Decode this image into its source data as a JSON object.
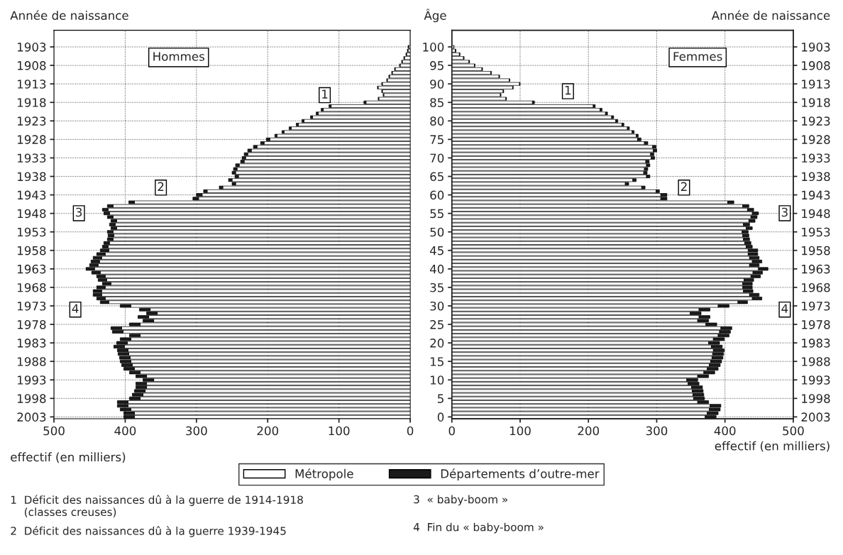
{
  "chart_data": [
    {
      "type": "bar",
      "orientation": "horizontal",
      "stacked": true,
      "title": "Hommes",
      "ylabel": "Année de naissance",
      "xlabel": "effectif (en milliers)",
      "categories": [
        "1903",
        null,
        null,
        null,
        null,
        "1908",
        null,
        null,
        null,
        null,
        "1913",
        null,
        null,
        null,
        null,
        "1918",
        null,
        null,
        null,
        null,
        "1923",
        null,
        null,
        null,
        null,
        "1928",
        null,
        null,
        null,
        null,
        "1933",
        null,
        null,
        null,
        null,
        "1938",
        null,
        null,
        null,
        null,
        "1943",
        null,
        null,
        null,
        null,
        "1948",
        null,
        null,
        null,
        null,
        "1953",
        null,
        null,
        null,
        null,
        "1958",
        null,
        null,
        null,
        null,
        "1963",
        null,
        null,
        null,
        null,
        "1968",
        null,
        null,
        null,
        null,
        "1973",
        null,
        null,
        null,
        null,
        "1978",
        null,
        null,
        null,
        null,
        "1983",
        null,
        null,
        null,
        null,
        "1988",
        null,
        null,
        null,
        null,
        "1993",
        null,
        null,
        null,
        null,
        "1998",
        null,
        null,
        null,
        null,
        "2003"
      ],
      "series": [
        {
          "name": "Métropole",
          "color": "#ffffff",
          "values": [
            2,
            3,
            5,
            8,
            11,
            14,
            21,
            25,
            29,
            32,
            39,
            45,
            39,
            37,
            44,
            62,
            111,
            122,
            129,
            137,
            149,
            157,
            167,
            177,
            187,
            197,
            205,
            215,
            223,
            228,
            231,
            233,
            240,
            243,
            245,
            241,
            250,
            245,
            263,
            285,
            292,
            297,
            387,
            417,
            424,
            422,
            417,
            412,
            414,
            412,
            417,
            416,
            417,
            422,
            424,
            423,
            428,
            433,
            436,
            438,
            443,
            435,
            428,
            426,
            420,
            428,
            433,
            433,
            428,
            423,
            392,
            365,
            355,
            367,
            360,
            379,
            405,
            403,
            379,
            392,
            397,
            401,
            396,
            395,
            393,
            392,
            390,
            387,
            379,
            370,
            360,
            370,
            370,
            372,
            375,
            379,
            396,
            396,
            392,
            387,
            387
          ]
        },
        {
          "name": "Départements d’outre-mer",
          "color": "#1a1a1a",
          "values": [
            1,
            1,
            1,
            1,
            1,
            1,
            1,
            1,
            1,
            1,
            1,
            1,
            1,
            1,
            1,
            3,
            3,
            3,
            3,
            3,
            3,
            3,
            3,
            3,
            3,
            5,
            5,
            5,
            5,
            5,
            5,
            5,
            5,
            5,
            5,
            5,
            5,
            5,
            5,
            5,
            8,
            8,
            8,
            8,
            8,
            8,
            8,
            8,
            8,
            8,
            8,
            8,
            8,
            8,
            8,
            12,
            12,
            12,
            12,
            12,
            12,
            12,
            12,
            12,
            12,
            12,
            12,
            12,
            12,
            12,
            15,
            15,
            15,
            15,
            15,
            15,
            15,
            15,
            15,
            15,
            15,
            15,
            15,
            15,
            15,
            15,
            15,
            15,
            15,
            15,
            15,
            15,
            15,
            15,
            15,
            15,
            15,
            15,
            15,
            15,
            15
          ]
        }
      ],
      "xlim": [
        500,
        0
      ],
      "xticks": [
        500,
        400,
        300,
        200,
        100,
        0
      ],
      "grid": true,
      "legend": "bottom",
      "annotations": [
        "1",
        "2",
        "3",
        "4",
        "1  Déficit des naissances dû à la guerre de 1914-1918\n    (classes creuses)",
        "2  Déficit des naissances dû à la guerre 1939-1945",
        "3  « baby-boom »",
        "4  Fin du « baby-boom »"
      ]
    },
    {
      "type": "bar",
      "orientation": "horizontal",
      "stacked": true,
      "title": "Femmes",
      "ylabel": "Âge",
      "y2label": "Année de naissance",
      "xlabel": "effectif (en milliers)",
      "categories": [
        "100",
        null,
        null,
        null,
        null,
        "95",
        null,
        null,
        null,
        null,
        "90",
        null,
        null,
        null,
        null,
        "85",
        null,
        null,
        null,
        null,
        "80",
        null,
        null,
        null,
        null,
        "75",
        null,
        null,
        null,
        null,
        "70",
        null,
        null,
        null,
        null,
        "65",
        null,
        null,
        null,
        null,
        "60",
        null,
        null,
        null,
        null,
        "55",
        null,
        null,
        null,
        null,
        "50",
        null,
        null,
        null,
        null,
        "45",
        null,
        null,
        null,
        null,
        "40",
        null,
        null,
        null,
        null,
        "35",
        null,
        null,
        null,
        null,
        "30",
        null,
        null,
        null,
        null,
        "25",
        null,
        null,
        null,
        null,
        "20",
        null,
        null,
        null,
        null,
        "15",
        null,
        null,
        null,
        null,
        "10",
        null,
        null,
        null,
        null,
        "5",
        null,
        null,
        null,
        null,
        "0"
      ],
      "series": [
        {
          "color": "#ffffff",
          "values": [
            3,
            5,
            11,
            17,
            25,
            33,
            44,
            57,
            69,
            84,
            99,
            89,
            75,
            71,
            79,
            118,
            207,
            217,
            225,
            234,
            240,
            249,
            257,
            264,
            270,
            272,
            282,
            294,
            295,
            291,
            292,
            284,
            285,
            282,
            281,
            285,
            265,
            254,
            278,
            299,
            306,
            306,
            404,
            426,
            433,
            440,
            438,
            435,
            427,
            431,
            425,
            426,
            427,
            429,
            431,
            434,
            434,
            436,
            440,
            436,
            449,
            441,
            438,
            428,
            426,
            426,
            427,
            436,
            440,
            419,
            390,
            362,
            349,
            362,
            360,
            372,
            394,
            392,
            390,
            383,
            376,
            380,
            383,
            382,
            381,
            379,
            377,
            374,
            369,
            360,
            344,
            346,
            351,
            352,
            353,
            354,
            360,
            378,
            377,
            374,
            371
          ]
        },
        {
          "color": "#1a1a1a",
          "values": [
            null,
            1,
            1,
            1,
            1,
            1,
            1,
            1,
            1,
            1,
            1,
            1,
            1,
            1,
            1,
            3,
            3,
            3,
            3,
            3,
            3,
            3,
            3,
            3,
            3,
            5,
            5,
            5,
            5,
            5,
            5,
            5,
            5,
            5,
            5,
            5,
            5,
            5,
            5,
            5,
            9,
            9,
            9,
            9,
            9,
            9,
            9,
            9,
            9,
            9,
            9,
            9,
            9,
            9,
            9,
            14,
            14,
            14,
            14,
            14,
            14,
            14,
            14,
            14,
            14,
            14,
            14,
            14,
            14,
            14,
            16,
            16,
            16,
            16,
            16,
            16,
            16,
            16,
            16,
            16,
            16,
            16,
            16,
            16,
            16,
            16,
            16,
            16,
            16,
            16,
            16,
            16,
            16,
            16,
            16,
            16,
            16,
            16,
            16,
            16,
            16
          ]
        }
      ],
      "xlim": [
        0,
        500
      ],
      "xticks": [
        0,
        100,
        200,
        300,
        400,
        500
      ],
      "y2lim": [
        2003.5,
        1898.5
      ],
      "y2ticks": [
        1903,
        1908,
        1913,
        1918,
        1923,
        1928,
        1933,
        1938,
        1943,
        1948,
        1953,
        1958,
        1963,
        1968,
        1973,
        1978,
        1983,
        1988,
        1993,
        1998,
        2003
      ],
      "grid": true,
      "annotations": [
        "1",
        "2",
        "3",
        "4"
      ]
    }
  ]
}
